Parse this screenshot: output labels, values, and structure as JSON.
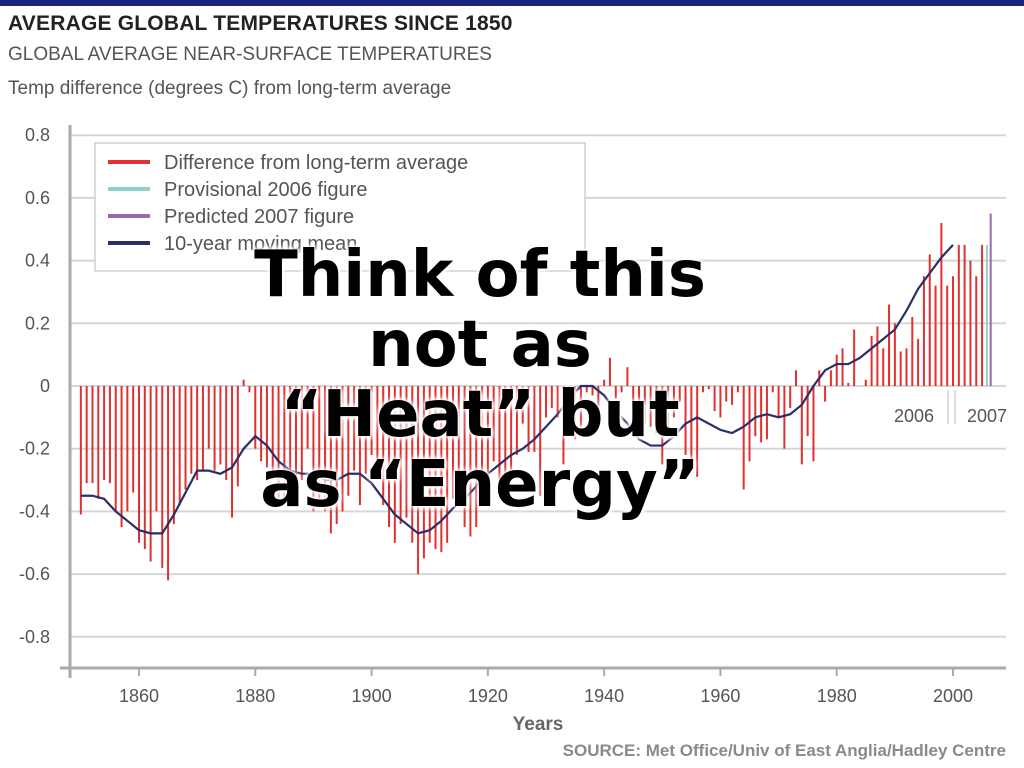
{
  "header": {
    "title": "AVERAGE GLOBAL TEMPERATURES SINCE 1850",
    "subtitle": "GLOBAL AVERAGE NEAR-SURFACE TEMPERATURES",
    "note": "Temp difference (degrees C) from long-term average"
  },
  "source": "SOURCE: Met Office/Univ of East Anglia/Hadley Centre",
  "overlay_lines": [
    "Think of this",
    "not as",
    "“Heat” but",
    "as “Energy”"
  ],
  "colors": {
    "difference": "#e03030",
    "provisional_2006": "#8fd0d0",
    "predicted_2007": "#9a6aab",
    "moving_mean": "#2a2f6a",
    "grid": "#d6d6d6",
    "axis": "#aaaaaa",
    "text": "#555555",
    "top_bar": "#1a237e"
  },
  "chart_data": {
    "type": "bar",
    "title": "",
    "xlabel": "Years",
    "ylabel": "",
    "xlim": [
      1850,
      2008
    ],
    "ylim": [
      -0.9,
      0.8
    ],
    "grid": true,
    "yticks": [
      0.8,
      0.6,
      0.4,
      0.2,
      0,
      -0.2,
      -0.4,
      -0.6,
      -0.8
    ],
    "ytick_labels": [
      "0.8",
      "0.6",
      "0.4",
      "0.2",
      "0",
      "-0.2",
      "-0.4",
      "-0.6",
      "-0.8"
    ],
    "xticks": [
      1860,
      1880,
      1900,
      1920,
      1940,
      1960,
      1980,
      2000
    ],
    "xtick_labels": [
      "1860",
      "1880",
      "1900",
      "1920",
      "1940",
      "1960",
      "1980",
      "2000"
    ],
    "legend_position": "top-left",
    "legend": [
      "Difference from long-term average",
      "Provisional 2006 figure",
      "Predicted 2007 figure",
      "10-year moving mean"
    ],
    "annotations": [
      {
        "text": "2006",
        "x": 2006
      },
      {
        "text": "2007",
        "x": 2007
      }
    ],
    "years": [
      1850,
      1851,
      1852,
      1853,
      1854,
      1855,
      1856,
      1857,
      1858,
      1859,
      1860,
      1861,
      1862,
      1863,
      1864,
      1865,
      1866,
      1867,
      1868,
      1869,
      1870,
      1871,
      1872,
      1873,
      1874,
      1875,
      1876,
      1877,
      1878,
      1879,
      1880,
      1881,
      1882,
      1883,
      1884,
      1885,
      1886,
      1887,
      1888,
      1889,
      1890,
      1891,
      1892,
      1893,
      1894,
      1895,
      1896,
      1897,
      1898,
      1899,
      1900,
      1901,
      1902,
      1903,
      1904,
      1905,
      1906,
      1907,
      1908,
      1909,
      1910,
      1911,
      1912,
      1913,
      1914,
      1915,
      1916,
      1917,
      1918,
      1919,
      1920,
      1921,
      1922,
      1923,
      1924,
      1925,
      1926,
      1927,
      1928,
      1929,
      1930,
      1931,
      1932,
      1933,
      1934,
      1935,
      1936,
      1937,
      1938,
      1939,
      1940,
      1941,
      1942,
      1943,
      1944,
      1945,
      1946,
      1947,
      1948,
      1949,
      1950,
      1951,
      1952,
      1953,
      1954,
      1955,
      1956,
      1957,
      1958,
      1959,
      1960,
      1961,
      1962,
      1963,
      1964,
      1965,
      1966,
      1967,
      1968,
      1969,
      1970,
      1971,
      1972,
      1973,
      1974,
      1975,
      1976,
      1977,
      1978,
      1979,
      1980,
      1981,
      1982,
      1983,
      1984,
      1985,
      1986,
      1987,
      1988,
      1989,
      1990,
      1991,
      1992,
      1993,
      1994,
      1995,
      1996,
      1997,
      1998,
      1999,
      2000,
      2001,
      2002,
      2003,
      2004,
      2005
    ],
    "series": [
      {
        "name": "Difference from long-term average",
        "values": [
          -0.41,
          -0.31,
          -0.31,
          -0.36,
          -0.3,
          -0.31,
          -0.4,
          -0.45,
          -0.4,
          -0.34,
          -0.5,
          -0.52,
          -0.56,
          -0.4,
          -0.58,
          -0.62,
          -0.44,
          -0.38,
          -0.33,
          -0.28,
          -0.3,
          -0.27,
          -0.2,
          -0.27,
          -0.25,
          -0.3,
          -0.42,
          -0.32,
          0.02,
          -0.02,
          -0.2,
          -0.24,
          -0.26,
          -0.3,
          -0.38,
          -0.36,
          -0.32,
          -0.36,
          -0.3,
          -0.2,
          -0.4,
          -0.36,
          -0.4,
          -0.47,
          -0.44,
          -0.4,
          -0.35,
          -0.27,
          -0.38,
          -0.28,
          -0.22,
          -0.25,
          -0.38,
          -0.45,
          -0.5,
          -0.44,
          -0.42,
          -0.5,
          -0.6,
          -0.55,
          -0.5,
          -0.52,
          -0.53,
          -0.5,
          -0.36,
          -0.3,
          -0.45,
          -0.48,
          -0.45,
          -0.34,
          -0.32,
          -0.24,
          -0.32,
          -0.28,
          -0.3,
          -0.22,
          -0.12,
          -0.21,
          -0.21,
          -0.35,
          -0.1,
          -0.07,
          -0.1,
          -0.25,
          -0.11,
          -0.17,
          -0.13,
          -0.02,
          -0.03,
          -0.1,
          0.02,
          0.09,
          -0.04,
          -0.02,
          0.06,
          -0.08,
          -0.1,
          -0.12,
          -0.13,
          -0.15,
          -0.25,
          -0.13,
          -0.1,
          -0.05,
          -0.22,
          -0.25,
          -0.29,
          -0.02,
          -0.01,
          -0.08,
          -0.1,
          -0.05,
          -0.06,
          -0.02,
          -0.33,
          -0.24,
          -0.16,
          -0.18,
          -0.17,
          -0.02,
          -0.1,
          -0.2,
          -0.07,
          0.05,
          -0.25,
          -0.16,
          -0.24,
          0.05,
          -0.05,
          0.05,
          0.1,
          0.12,
          0.01,
          0.18,
          0.0,
          0.02,
          0.16,
          0.19,
          0.12,
          0.26,
          0.2,
          0.11,
          0.12,
          0.22,
          0.15,
          0.35,
          0.42,
          0.32,
          0.52,
          0.32,
          0.35,
          0.45,
          0.45,
          0.4,
          0.35,
          0.45
        ]
      },
      {
        "name": "10-year moving mean",
        "x": [
          1850,
          1852,
          1854,
          1856,
          1858,
          1860,
          1862,
          1864,
          1866,
          1868,
          1870,
          1872,
          1874,
          1876,
          1878,
          1880,
          1882,
          1884,
          1886,
          1888,
          1890,
          1892,
          1894,
          1896,
          1898,
          1900,
          1902,
          1904,
          1906,
          1908,
          1910,
          1912,
          1914,
          1916,
          1918,
          1920,
          1922,
          1924,
          1926,
          1928,
          1930,
          1932,
          1934,
          1936,
          1938,
          1940,
          1942,
          1944,
          1946,
          1948,
          1950,
          1952,
          1954,
          1956,
          1958,
          1960,
          1962,
          1964,
          1966,
          1968,
          1970,
          1972,
          1974,
          1976,
          1978,
          1980,
          1982,
          1984,
          1986,
          1988,
          1990,
          1992,
          1994,
          1996,
          1998,
          2000
        ],
        "values": [
          -0.35,
          -0.35,
          -0.36,
          -0.4,
          -0.43,
          -0.46,
          -0.47,
          -0.47,
          -0.41,
          -0.34,
          -0.27,
          -0.27,
          -0.28,
          -0.26,
          -0.2,
          -0.16,
          -0.19,
          -0.24,
          -0.27,
          -0.28,
          -0.28,
          -0.3,
          -0.3,
          -0.28,
          -0.28,
          -0.31,
          -0.36,
          -0.41,
          -0.44,
          -0.47,
          -0.46,
          -0.43,
          -0.39,
          -0.36,
          -0.32,
          -0.28,
          -0.25,
          -0.22,
          -0.2,
          -0.17,
          -0.13,
          -0.09,
          -0.04,
          0.0,
          0.0,
          -0.03,
          -0.08,
          -0.12,
          -0.17,
          -0.19,
          -0.19,
          -0.16,
          -0.12,
          -0.1,
          -0.12,
          -0.14,
          -0.15,
          -0.13,
          -0.1,
          -0.09,
          -0.1,
          -0.09,
          -0.06,
          0.0,
          0.05,
          0.07,
          0.07,
          0.09,
          0.12,
          0.15,
          0.18,
          0.24,
          0.31,
          0.36,
          0.41,
          0.45
        ]
      },
      {
        "name": "Provisional 2006 figure",
        "x": [
          2006
        ],
        "values": [
          0.45
        ]
      },
      {
        "name": "Predicted 2007 figure",
        "x": [
          2007
        ],
        "values": [
          0.55
        ]
      }
    ]
  }
}
